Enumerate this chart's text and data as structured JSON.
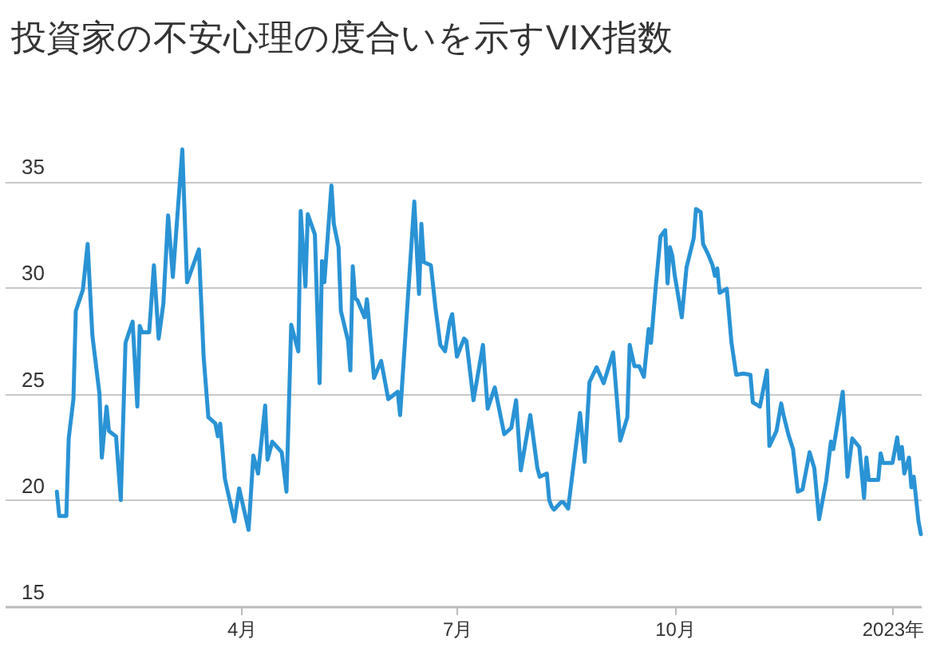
{
  "chart_data": {
    "type": "line",
    "title": "投資家の不安心理の度合いを示すVIX指数",
    "xlim": [
      "2021-12-22",
      "2023-01-13"
    ],
    "xticks": [
      {
        "value": "2022-04-01",
        "label": "4月"
      },
      {
        "value": "2022-07-01",
        "label": "7月"
      },
      {
        "value": "2022-10-01",
        "label": "10月"
      },
      {
        "value": "2023-01-01",
        "label": "2023年"
      }
    ],
    "ylim": [
      15,
      37
    ],
    "yticks": [
      15,
      20,
      25,
      30,
      35
    ],
    "grid": "y",
    "x": [
      "2022-01-13",
      "2022-01-14",
      "2022-01-17",
      "2022-01-18",
      "2022-01-20",
      "2022-01-21",
      "2022-01-24",
      "2022-01-26",
      "2022-01-28",
      "2022-01-31",
      "2022-02-01",
      "2022-02-03",
      "2022-02-04",
      "2022-02-07",
      "2022-02-09",
      "2022-02-11",
      "2022-02-14",
      "2022-02-16",
      "2022-02-17",
      "2022-02-18",
      "2022-02-21",
      "2022-02-23",
      "2022-02-25",
      "2022-02-27",
      "2022-03-01",
      "2022-03-03",
      "2022-03-07",
      "2022-03-09",
      "2022-03-14",
      "2022-03-16",
      "2022-03-18",
      "2022-03-21",
      "2022-03-22",
      "2022-03-23",
      "2022-03-25",
      "2022-03-29",
      "2022-03-31",
      "2022-04-04",
      "2022-04-06",
      "2022-04-08",
      "2022-04-11",
      "2022-04-12",
      "2022-04-14",
      "2022-04-18",
      "2022-04-20",
      "2022-04-22",
      "2022-04-25",
      "2022-04-26",
      "2022-04-28",
      "2022-04-29",
      "2022-05-02",
      "2022-05-04",
      "2022-05-05",
      "2022-05-06",
      "2022-05-09",
      "2022-05-10",
      "2022-05-12",
      "2022-05-13",
      "2022-05-16",
      "2022-05-17",
      "2022-05-18",
      "2022-05-19",
      "2022-05-20",
      "2022-05-23",
      "2022-05-24",
      "2022-05-27",
      "2022-05-30",
      "2022-06-02",
      "2022-06-06",
      "2022-06-07",
      "2022-06-13",
      "2022-06-15",
      "2022-06-16",
      "2022-06-17",
      "2022-06-20",
      "2022-06-22",
      "2022-06-24",
      "2022-06-26",
      "2022-06-28",
      "2022-06-29",
      "2022-07-01",
      "2022-07-04",
      "2022-07-05",
      "2022-07-08",
      "2022-07-12",
      "2022-07-14",
      "2022-07-17",
      "2022-07-21",
      "2022-07-24",
      "2022-07-26",
      "2022-07-28",
      "2022-08-01",
      "2022-08-04",
      "2022-08-05",
      "2022-08-08",
      "2022-08-09",
      "2022-08-10",
      "2022-08-11",
      "2022-08-14",
      "2022-08-15",
      "2022-08-17",
      "2022-08-22",
      "2022-08-24",
      "2022-08-26",
      "2022-08-29",
      "2022-09-01",
      "2022-09-05",
      "2022-09-08",
      "2022-09-11",
      "2022-09-12",
      "2022-09-14",
      "2022-09-16",
      "2022-09-18",
      "2022-09-20",
      "2022-09-21",
      "2022-09-23",
      "2022-09-25",
      "2022-09-27",
      "2022-09-28",
      "2022-09-29",
      "2022-09-30",
      "2022-10-01",
      "2022-10-04",
      "2022-10-06",
      "2022-10-09",
      "2022-10-10",
      "2022-10-12",
      "2022-10-13",
      "2022-10-15",
      "2022-10-17",
      "2022-10-18",
      "2022-10-19",
      "2022-10-20",
      "2022-10-23",
      "2022-10-25",
      "2022-10-27",
      "2022-10-30",
      "2022-11-02",
      "2022-11-03",
      "2022-11-06",
      "2022-11-09",
      "2022-11-10",
      "2022-11-13",
      "2022-11-15",
      "2022-11-16",
      "2022-11-18",
      "2022-11-20",
      "2022-11-22",
      "2022-11-24",
      "2022-11-27",
      "2022-11-29",
      "2022-12-01",
      "2022-12-04",
      "2022-12-06",
      "2022-12-07",
      "2022-12-11",
      "2022-12-13",
      "2022-12-15",
      "2022-12-18",
      "2022-12-20",
      "2022-12-21",
      "2022-12-22",
      "2022-12-26",
      "2022-12-27",
      "2022-12-28",
      "2023-01-01",
      "2023-01-03",
      "2023-01-04",
      "2023-01-05",
      "2023-01-06",
      "2023-01-08",
      "2023-01-09",
      "2023-01-10",
      "2023-01-12",
      "2023-01-13"
    ],
    "series": [
      {
        "color": "#2a93d5",
        "values": [
          20.4,
          19.25,
          19.25,
          22.9,
          24.75,
          28.9,
          29.9,
          32.05,
          27.75,
          25,
          22,
          24.4,
          23.25,
          23,
          20,
          27.4,
          28.4,
          24.4,
          28.2,
          27.9,
          27.9,
          31.05,
          27.6,
          29.25,
          33.4,
          30.5,
          36.5,
          30.25,
          31.8,
          26.75,
          23.9,
          23.6,
          23,
          23.6,
          21,
          19,
          20.55,
          18.6,
          22.1,
          21.25,
          24.45,
          21.9,
          22.75,
          22.25,
          20.4,
          28.25,
          27,
          33.6,
          30.05,
          33.45,
          32.5,
          25.5,
          31.25,
          30.25,
          34.8,
          33,
          31.9,
          28.9,
          27.5,
          26.1,
          31,
          29.5,
          29.4,
          28.6,
          29.45,
          25.75,
          26.55,
          24.75,
          25.1,
          24,
          34.05,
          29.7,
          33,
          31.2,
          31.05,
          29,
          27.3,
          27,
          28.4,
          28.75,
          26.75,
          27.6,
          27.5,
          24.7,
          27.3,
          24.3,
          25.3,
          23.1,
          23.4,
          24.7,
          21.4,
          24,
          21.5,
          21.1,
          21.25,
          20,
          19.7,
          19.55,
          19.9,
          19.9,
          19.6,
          24.1,
          21.8,
          25.55,
          26.25,
          25.5,
          26.95,
          22.8,
          23.9,
          27.3,
          26.3,
          26.3,
          25.8,
          28.05,
          27.4,
          30.05,
          32.4,
          32.7,
          30.2,
          31.9,
          31.5,
          30.6,
          28.6,
          30.95,
          32.3,
          33.7,
          33.55,
          32.05,
          31.6,
          31.05,
          30.55,
          30.9,
          29.75,
          29.95,
          27.4,
          25.9,
          25.95,
          25.9,
          24.6,
          24.4,
          26.1,
          22.55,
          23.25,
          24.55,
          24,
          23.1,
          22.4,
          20.4,
          20.5,
          22.25,
          21.5,
          19.1,
          20.9,
          22.75,
          22.4,
          25.1,
          21.1,
          22.9,
          22.5,
          20.1,
          22,
          20.95,
          20.95,
          22.2,
          21.75,
          21.75,
          22.95,
          21.95,
          22.5,
          21.25,
          22,
          20.6,
          21.1,
          19,
          18.4
        ]
      }
    ]
  }
}
